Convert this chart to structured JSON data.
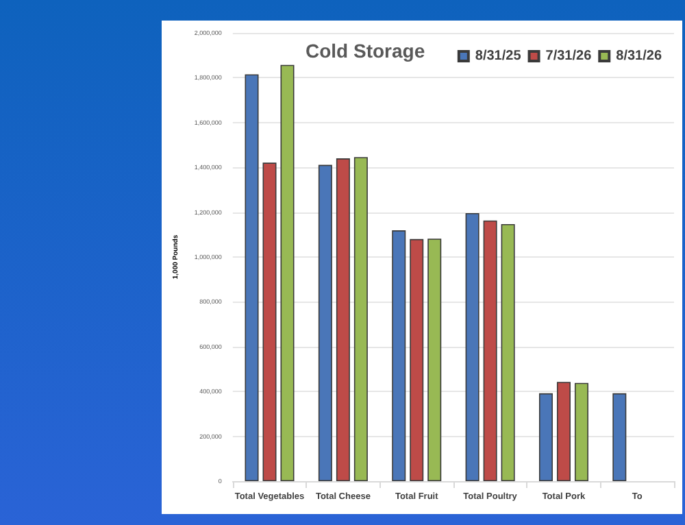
{
  "chart_data": {
    "type": "bar",
    "title": "Cold Storage",
    "ylabel": "1,000 Pounds",
    "categories": [
      "Total Vegetables",
      "Total Cheese",
      "Total Fruit",
      "Total Poultry",
      "Total Pork",
      "To"
    ],
    "series": [
      {
        "name": "8/31/25",
        "color": "#4a76b8",
        "values": [
          1815000,
          1411000,
          1119000,
          1196000,
          392000,
          392000
        ]
      },
      {
        "name": "7/31/26",
        "color": "#be4b48",
        "values": [
          1421000,
          1440000,
          1080000,
          1163000,
          443000,
          null
        ]
      },
      {
        "name": "8/31/26",
        "color": "#98b954",
        "values": [
          1857000,
          1446000,
          1082000,
          1147000,
          438000,
          null
        ]
      }
    ],
    "ylim": [
      0,
      2000000
    ],
    "yticks": [
      0,
      {
        "value": 200000,
        "label": "200,000"
      },
      {
        "value": 400000,
        "label": "400,000"
      },
      {
        "value": 600000,
        "label": "600,000"
      },
      {
        "value": 800000,
        "label": "800,000"
      },
      {
        "value": 1000000,
        "label": "1,000,000"
      },
      {
        "value": 1200000,
        "label": "1,200,000"
      },
      {
        "value": 1400000,
        "label": "1,400,000"
      },
      {
        "value": 1600000,
        "label": "1,600,000"
      },
      {
        "value": 1800000,
        "label": "1,800,000"
      },
      {
        "value": 2000000,
        "label": "2,000,000"
      }
    ],
    "grid": "y",
    "legend": "top right"
  }
}
